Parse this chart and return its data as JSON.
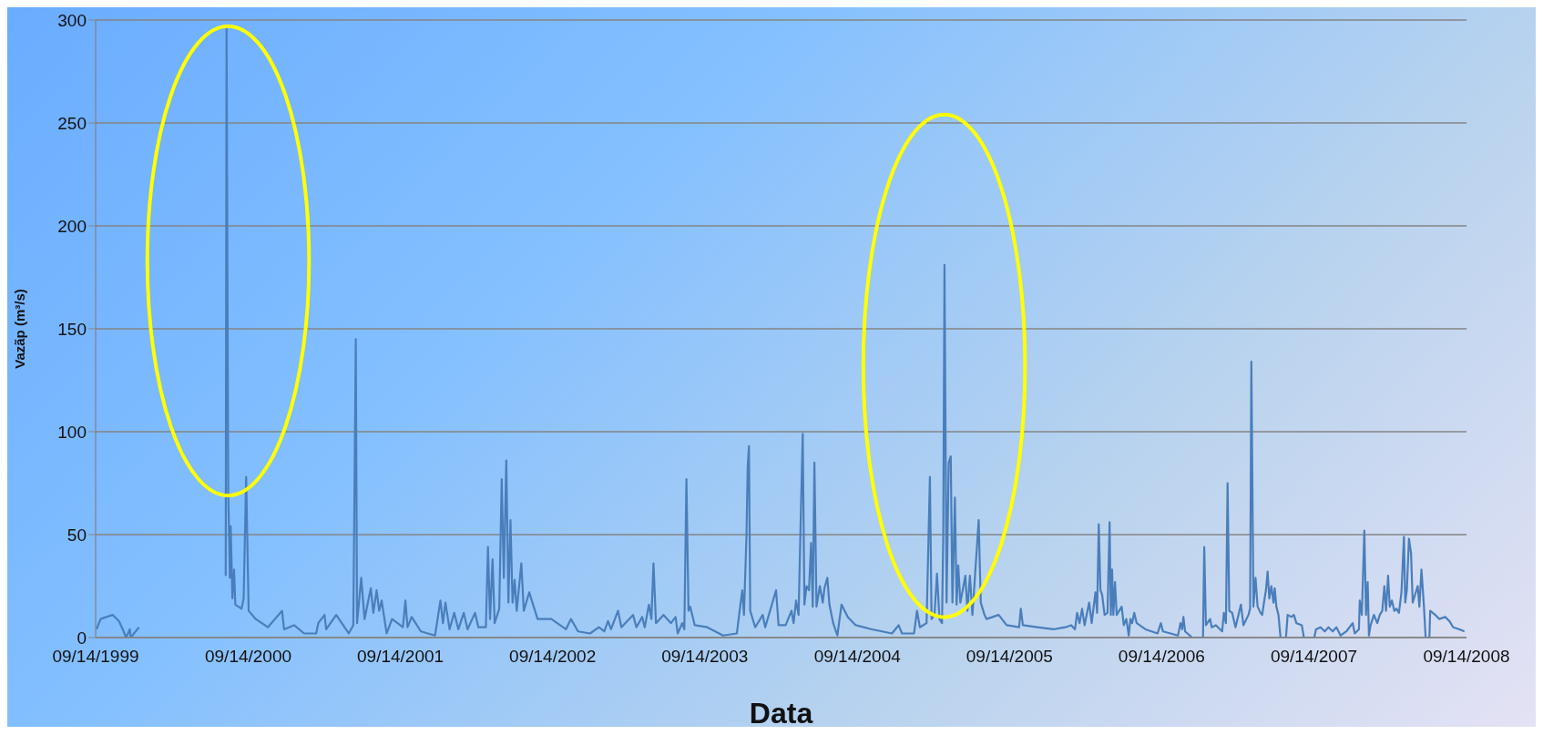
{
  "chart_data": {
    "type": "line",
    "xlabel": "Data",
    "ylabel": "Vazãp (m³/s)",
    "grid": "y",
    "legend": false,
    "xlim": [
      "1999-09-14",
      "2008-09-14"
    ],
    "ylim": [
      0,
      300
    ],
    "yticks": [
      0,
      50,
      100,
      150,
      200,
      250,
      300
    ],
    "xticks": [
      {
        "value": "1999-09-14",
        "label": "09/14/1999"
      },
      {
        "value": "2000-09-14",
        "label": "09/14/2000"
      },
      {
        "value": "2001-09-14",
        "label": "09/14/2001"
      },
      {
        "value": "2002-09-14",
        "label": "09/14/2002"
      },
      {
        "value": "2003-09-14",
        "label": "09/14/2003"
      },
      {
        "value": "2004-09-14",
        "label": "09/14/2004"
      },
      {
        "value": "2005-09-14",
        "label": "09/14/2005"
      },
      {
        "value": "2006-09-14",
        "label": "09/14/2006"
      },
      {
        "value": "2007-09-14",
        "label": "09/14/2007"
      },
      {
        "value": "2008-09-14",
        "label": "09/14/2008"
      }
    ],
    "x": [
      "1999-09-16",
      "1999-09-26",
      "1999-10-10",
      "1999-10-25",
      "1999-11-09",
      "1999-11-18",
      "1999-11-26",
      "1999-12-05",
      "1999-12-07",
      "1999-12-27",
      "2000-03-01",
      "2000-07-22",
      "2000-07-24",
      "2000-07-28",
      "2000-08-01",
      "2000-08-03",
      "2000-08-07",
      "2000-08-11",
      "2000-08-14",
      "2000-08-29",
      "2000-09-03",
      "2000-09-09",
      "2000-09-15",
      "2000-10-02",
      "2000-10-31",
      "2000-12-04",
      "2000-12-09",
      "2001-01-02",
      "2001-01-26",
      "2001-02-24",
      "2001-03-01",
      "2001-03-16",
      "2001-03-20",
      "2001-04-13",
      "2001-05-13",
      "2001-05-24",
      "2001-05-30",
      "2001-06-02",
      "2001-06-12",
      "2001-06-20",
      "2001-07-05",
      "2001-07-11",
      "2001-07-19",
      "2001-07-25",
      "2001-07-31",
      "2001-08-12",
      "2001-08-25",
      "2001-09-20",
      "2001-09-26",
      "2001-10-01",
      "2001-10-11",
      "2001-11-02",
      "2001-12-06",
      "2001-12-19",
      "2001-12-25",
      "2001-12-31",
      "2002-01-10",
      "2002-01-21",
      "2002-01-31",
      "2002-02-13",
      "2002-02-22",
      "2002-03-12",
      "2002-03-20",
      "2002-04-07",
      "2002-04-12",
      "2002-04-17",
      "2002-04-23",
      "2002-04-28",
      "2002-05-09",
      "2002-05-15",
      "2002-05-20",
      "2002-05-26",
      "2002-05-31",
      "2002-06-05",
      "2002-06-10",
      "2002-06-15",
      "2002-06-20",
      "2002-07-01",
      "2002-07-07",
      "2002-07-20",
      "2002-08-09",
      "2002-09-11",
      "2002-10-16",
      "2002-10-28",
      "2002-11-14",
      "2002-12-13",
      "2003-01-03",
      "2003-01-16",
      "2003-01-25",
      "2003-02-01",
      "2003-02-18",
      "2003-02-26",
      "2003-03-26",
      "2003-04-03",
      "2003-04-17",
      "2003-04-23",
      "2003-05-03",
      "2003-05-09",
      "2003-05-14",
      "2003-05-20",
      "2003-06-07",
      "2003-06-25",
      "2003-07-06",
      "2003-07-11",
      "2003-07-22",
      "2003-07-27",
      "2003-08-01",
      "2003-08-06",
      "2003-08-10",
      "2003-08-21",
      "2003-09-20",
      "2003-10-28",
      "2003-11-30",
      "2003-12-06",
      "2003-12-13",
      "2003-12-17",
      "2003-12-23",
      "2003-12-26",
      "2003-12-29",
      "2004-01-01",
      "2004-01-13",
      "2004-01-31",
      "2004-02-06",
      "2004-03-03",
      "2004-03-09",
      "2004-03-26",
      "2004-04-09",
      "2004-04-14",
      "2004-04-20",
      "2004-04-26",
      "2004-05-02",
      "2004-05-06",
      "2004-05-10",
      "2004-05-15",
      "2004-05-21",
      "2004-05-26",
      "2004-05-30",
      "2004-06-03",
      "2004-06-08",
      "2004-06-16",
      "2004-06-23",
      "2004-06-27",
      "2004-07-04",
      "2004-07-09",
      "2004-07-18",
      "2004-07-28",
      "2004-08-07",
      "2004-08-22",
      "2004-09-10",
      "2004-10-19",
      "2004-12-06",
      "2004-12-22",
      "2004-12-30",
      "2005-01-28",
      "2005-02-04",
      "2005-02-11",
      "2005-02-27",
      "2005-03-07",
      "2005-03-11",
      "2005-03-18",
      "2005-03-24",
      "2005-03-30",
      "2005-04-05",
      "2005-04-08",
      "2005-04-11",
      "2005-04-16",
      "2005-04-21",
      "2005-04-26",
      "2005-04-30",
      "2005-05-06",
      "2005-05-10",
      "2005-05-14",
      "2005-05-19",
      "2005-05-31",
      "2005-06-05",
      "2005-06-11",
      "2005-06-17",
      "2005-07-02",
      "2005-07-07",
      "2005-07-16",
      "2005-07-21",
      "2005-08-19",
      "2005-09-07",
      "2005-10-07",
      "2005-10-11",
      "2005-10-16",
      "2005-11-19",
      "2005-12-28",
      "2006-01-26",
      "2006-02-09",
      "2006-02-18",
      "2006-02-23",
      "2006-03-01",
      "2006-03-07",
      "2006-03-13",
      "2006-03-24",
      "2006-03-30",
      "2006-04-08",
      "2006-04-12",
      "2006-04-16",
      "2006-04-20",
      "2006-04-24",
      "2006-04-30",
      "2006-05-07",
      "2006-05-12",
      "2006-05-15",
      "2006-05-18",
      "2006-05-21",
      "2006-05-25",
      "2006-05-29",
      "2006-06-10",
      "2006-06-15",
      "2006-06-21",
      "2006-06-27",
      "2006-07-01",
      "2006-07-05",
      "2006-07-10",
      "2006-07-16",
      "2006-08-06",
      "2006-09-04",
      "2006-09-12",
      "2006-09-17",
      "2006-10-23",
      "2006-10-29",
      "2006-11-02",
      "2006-11-05",
      "2006-11-09",
      "2006-11-26",
      "2006-12-22",
      "2006-12-25",
      "2006-12-29",
      "2007-01-08",
      "2007-01-12",
      "2007-01-22",
      "2007-02-06",
      "2007-02-10",
      "2007-02-15",
      "2007-02-19",
      "2007-02-23",
      "2007-03-02",
      "2007-03-10",
      "2007-03-23",
      "2007-03-29",
      "2007-04-10",
      "2007-04-14",
      "2007-04-17",
      "2007-04-22",
      "2007-04-27",
      "2007-05-02",
      "2007-05-09",
      "2007-05-13",
      "2007-05-18",
      "2007-05-22",
      "2007-05-26",
      "2007-05-30",
      "2007-06-04",
      "2007-06-09",
      "2007-06-12",
      "2007-06-16",
      "2007-06-21",
      "2007-06-26",
      "2007-07-09",
      "2007-07-13",
      "2007-07-22",
      "2007-07-28",
      "2007-08-03",
      "2007-08-16",
      "2007-08-21",
      "2007-09-15",
      "2007-09-19",
      "2007-09-30",
      "2007-10-10",
      "2007-10-19",
      "2007-10-29",
      "2007-11-07",
      "2007-11-17",
      "2007-12-01",
      "2007-12-16",
      "2007-12-21",
      "2007-12-31",
      "2008-01-02",
      "2008-01-07",
      "2008-01-13",
      "2008-01-17",
      "2008-01-21",
      "2008-01-24",
      "2008-01-28",
      "2008-02-05",
      "2008-02-13",
      "2008-02-19",
      "2008-02-25",
      "2008-03-01",
      "2008-03-05",
      "2008-03-10",
      "2008-03-14",
      "2008-03-19",
      "2008-03-25",
      "2008-03-30",
      "2008-04-05",
      "2008-04-11",
      "2008-04-17",
      "2008-04-20",
      "2008-04-24",
      "2008-04-29",
      "2008-05-04",
      "2008-05-08",
      "2008-05-14",
      "2008-05-20",
      "2008-05-24",
      "2008-05-29",
      "2008-06-04",
      "2008-06-08",
      "2008-06-17",
      "2008-06-19",
      "2008-07-01",
      "2008-07-11",
      "2008-07-25",
      "2008-08-04",
      "2008-08-13",
      "2008-08-28",
      "2008-09-09"
    ],
    "series": [
      {
        "color": "#4a7ebb",
        "values": [
          4,
          9,
          10,
          11,
          8,
          4,
          0,
          4,
          0,
          5,
          null,
          30,
          297,
          71,
          29,
          54,
          19,
          33,
          16,
          14,
          19,
          78,
          13,
          9,
          5,
          13,
          4,
          6,
          2,
          2,
          7,
          11,
          4,
          11,
          2,
          6,
          145,
          7,
          29,
          9,
          24,
          12,
          23,
          13,
          18,
          2,
          9,
          5,
          18,
          5,
          10,
          3,
          1,
          18,
          7,
          17,
          4,
          12,
          4,
          12,
          4,
          12,
          5,
          5,
          44,
          9,
          38,
          7,
          14,
          77,
          29,
          86,
          17,
          57,
          17,
          28,
          13,
          36,
          13,
          22,
          9,
          9,
          4,
          9,
          3,
          2,
          5,
          3,
          8,
          4,
          13,
          5,
          11,
          5,
          10,
          5,
          16,
          9,
          36,
          7,
          11,
          7,
          10,
          2,
          7,
          4,
          77,
          13,
          15,
          6,
          5,
          1,
          2,
          12,
          23,
          11,
          49,
          83,
          93,
          13,
          5,
          11,
          5,
          23,
          6,
          6,
          13,
          7,
          18,
          11,
          65,
          99,
          16,
          25,
          23,
          46,
          15,
          85,
          15,
          25,
          17,
          24,
          29,
          16,
          7,
          1,
          16,
          10,
          6,
          4,
          2,
          6,
          2,
          2,
          13,
          5,
          7,
          78,
          9,
          11,
          31,
          9,
          7,
          49,
          181,
          17,
          85,
          88,
          17,
          68,
          16,
          35,
          17,
          30,
          13,
          30,
          11,
          57,
          17,
          11,
          9,
          11,
          6,
          5,
          14,
          6,
          5,
          4,
          5,
          6,
          4,
          12,
          7,
          14,
          6,
          17,
          7,
          22,
          12,
          55,
          23,
          21,
          11,
          12,
          56,
          11,
          33,
          11,
          27,
          11,
          15,
          6,
          9,
          1,
          9,
          7,
          12,
          7,
          4,
          2,
          7,
          3,
          1,
          7,
          4,
          10,
          3,
          0,
          0,
          44,
          6,
          9,
          5,
          6,
          3,
          12,
          7,
          75,
          13,
          12,
          5,
          16,
          6,
          11,
          14,
          134,
          15,
          29,
          15,
          12,
          11,
          18,
          23,
          32,
          19,
          25,
          17,
          24,
          15,
          11,
          0,
          0,
          11,
          10,
          11,
          7,
          6,
          0,
          0,
          4,
          5,
          3,
          5,
          3,
          5,
          1,
          3,
          7,
          2,
          4,
          18,
          11,
          52,
          11,
          27,
          1,
          6,
          11,
          7,
          11,
          13,
          25,
          13,
          30,
          15,
          18,
          13,
          14,
          12,
          22,
          49,
          17,
          23,
          48,
          41,
          17,
          21,
          25,
          15,
          33,
          15,
          0,
          0,
          13,
          11,
          9,
          10,
          8,
          5,
          4,
          3
        ]
      }
    ]
  }
}
